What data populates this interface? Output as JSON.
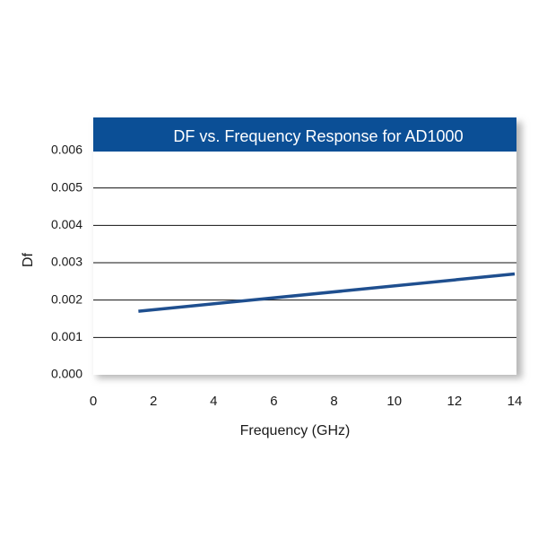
{
  "chart_data": {
    "type": "line",
    "title": "DF vs. Frequency Response for AD1000",
    "xlabel": "Frequency (GHz)",
    "ylabel": "Df",
    "xlim": [
      0,
      14
    ],
    "ylim": [
      0,
      0.006
    ],
    "x_ticks": [
      "0",
      "2",
      "4",
      "6",
      "8",
      "10",
      "12",
      "14"
    ],
    "y_ticks": [
      "0.000",
      "0.001",
      "0.002",
      "0.003",
      "0.004",
      "0.005",
      "0.006"
    ],
    "grid": true,
    "legend": "none",
    "series": [
      {
        "x": [
          1.5,
          14
        ],
        "values": [
          0.0017,
          0.0027
        ],
        "color": "#1f4f8f"
      }
    ],
    "colors": {
      "title_bar": "#0b4f96",
      "line": "#1f4f8f",
      "grid": "#111111",
      "shadow": "#b5b5b5"
    }
  }
}
